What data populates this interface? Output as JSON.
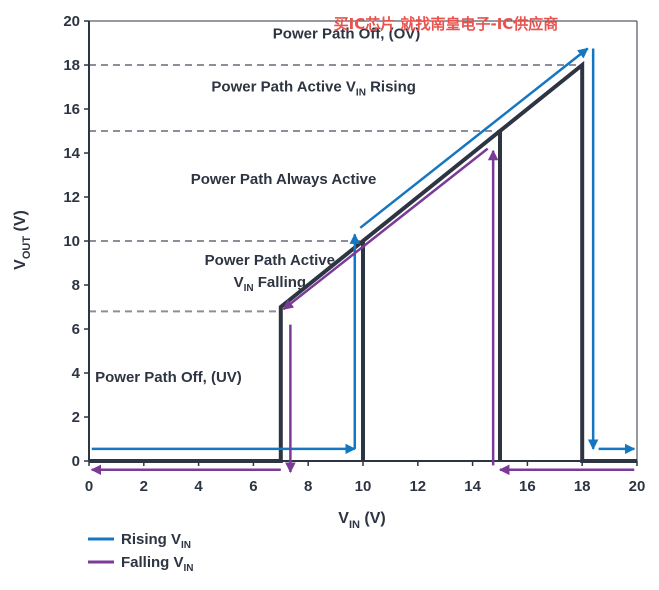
{
  "chart_data": {
    "type": "line",
    "watermark": "买IC芯片 就找南皇电子-IC供应商",
    "xlabel": {
      "main": "V",
      "sub": "IN",
      "suffix": " (V)"
    },
    "ylabel": {
      "main": "V",
      "sub": "OUT",
      "suffix": " (V)"
    },
    "xlim": [
      0,
      20
    ],
    "ylim": [
      0,
      20
    ],
    "xticks": [
      0,
      2,
      4,
      6,
      8,
      10,
      12,
      14,
      16,
      18,
      20
    ],
    "yticks": [
      0,
      2,
      4,
      6,
      8,
      10,
      12,
      14,
      16,
      18,
      20
    ],
    "threshold_lines": [
      6.8,
      10,
      15,
      18
    ],
    "regions": [
      {
        "id": "off-ov",
        "label": "Power Path Off, (OV)",
        "x": 9.4,
        "y": 19.2
      },
      {
        "id": "active-rising",
        "label": "Power Path Active V|IN| Rising",
        "x": 8.2,
        "y": 16.8
      },
      {
        "id": "always-active",
        "label": "Power Path Always Active",
        "x": 7.1,
        "y": 12.6
      },
      {
        "id": "active-falling-1",
        "label": "Power Path Active",
        "x": 6.6,
        "y": 8.9
      },
      {
        "id": "active-falling-2",
        "label": "V|IN| Falling",
        "x": 6.6,
        "y": 7.9
      },
      {
        "id": "off-uv",
        "label": "Power Path Off, (UV)",
        "x": 2.9,
        "y": 3.6
      }
    ],
    "transfer_curve": {
      "x": [
        0,
        7,
        7,
        10,
        10,
        10,
        15,
        15,
        15,
        18,
        18,
        20
      ],
      "y": [
        0,
        0,
        7,
        10,
        0,
        10,
        15,
        0,
        15,
        18,
        0,
        0
      ],
      "color": "#2e3542"
    },
    "series": [
      {
        "name": "Rising V|IN|",
        "color": "#1576c2",
        "paths": [
          [
            [
              0.1,
              0.55
            ],
            [
              9.7,
              0.55
            ]
          ],
          [
            [
              9.7,
              0.55
            ],
            [
              9.7,
              10.3
            ]
          ],
          [
            [
              9.9,
              10.6
            ],
            [
              18.2,
              18.75
            ]
          ],
          [
            [
              18.4,
              18.75
            ],
            [
              18.4,
              0.55
            ]
          ],
          [
            [
              18.6,
              0.55
            ],
            [
              19.9,
              0.55
            ]
          ]
        ]
      },
      {
        "name": "Falling V|IN|",
        "color": "#7a3b97",
        "paths": [
          [
            [
              19.9,
              -0.4
            ],
            [
              15.0,
              -0.4
            ]
          ],
          [
            [
              14.75,
              -0.2
            ],
            [
              14.75,
              14.1
            ]
          ],
          [
            [
              14.55,
              14.2
            ],
            [
              7.1,
              6.9
            ]
          ],
          [
            [
              7.35,
              6.2
            ],
            [
              7.35,
              -0.5
            ]
          ],
          [
            [
              7.0,
              -0.4
            ],
            [
              0.1,
              -0.4
            ]
          ]
        ]
      }
    ]
  }
}
